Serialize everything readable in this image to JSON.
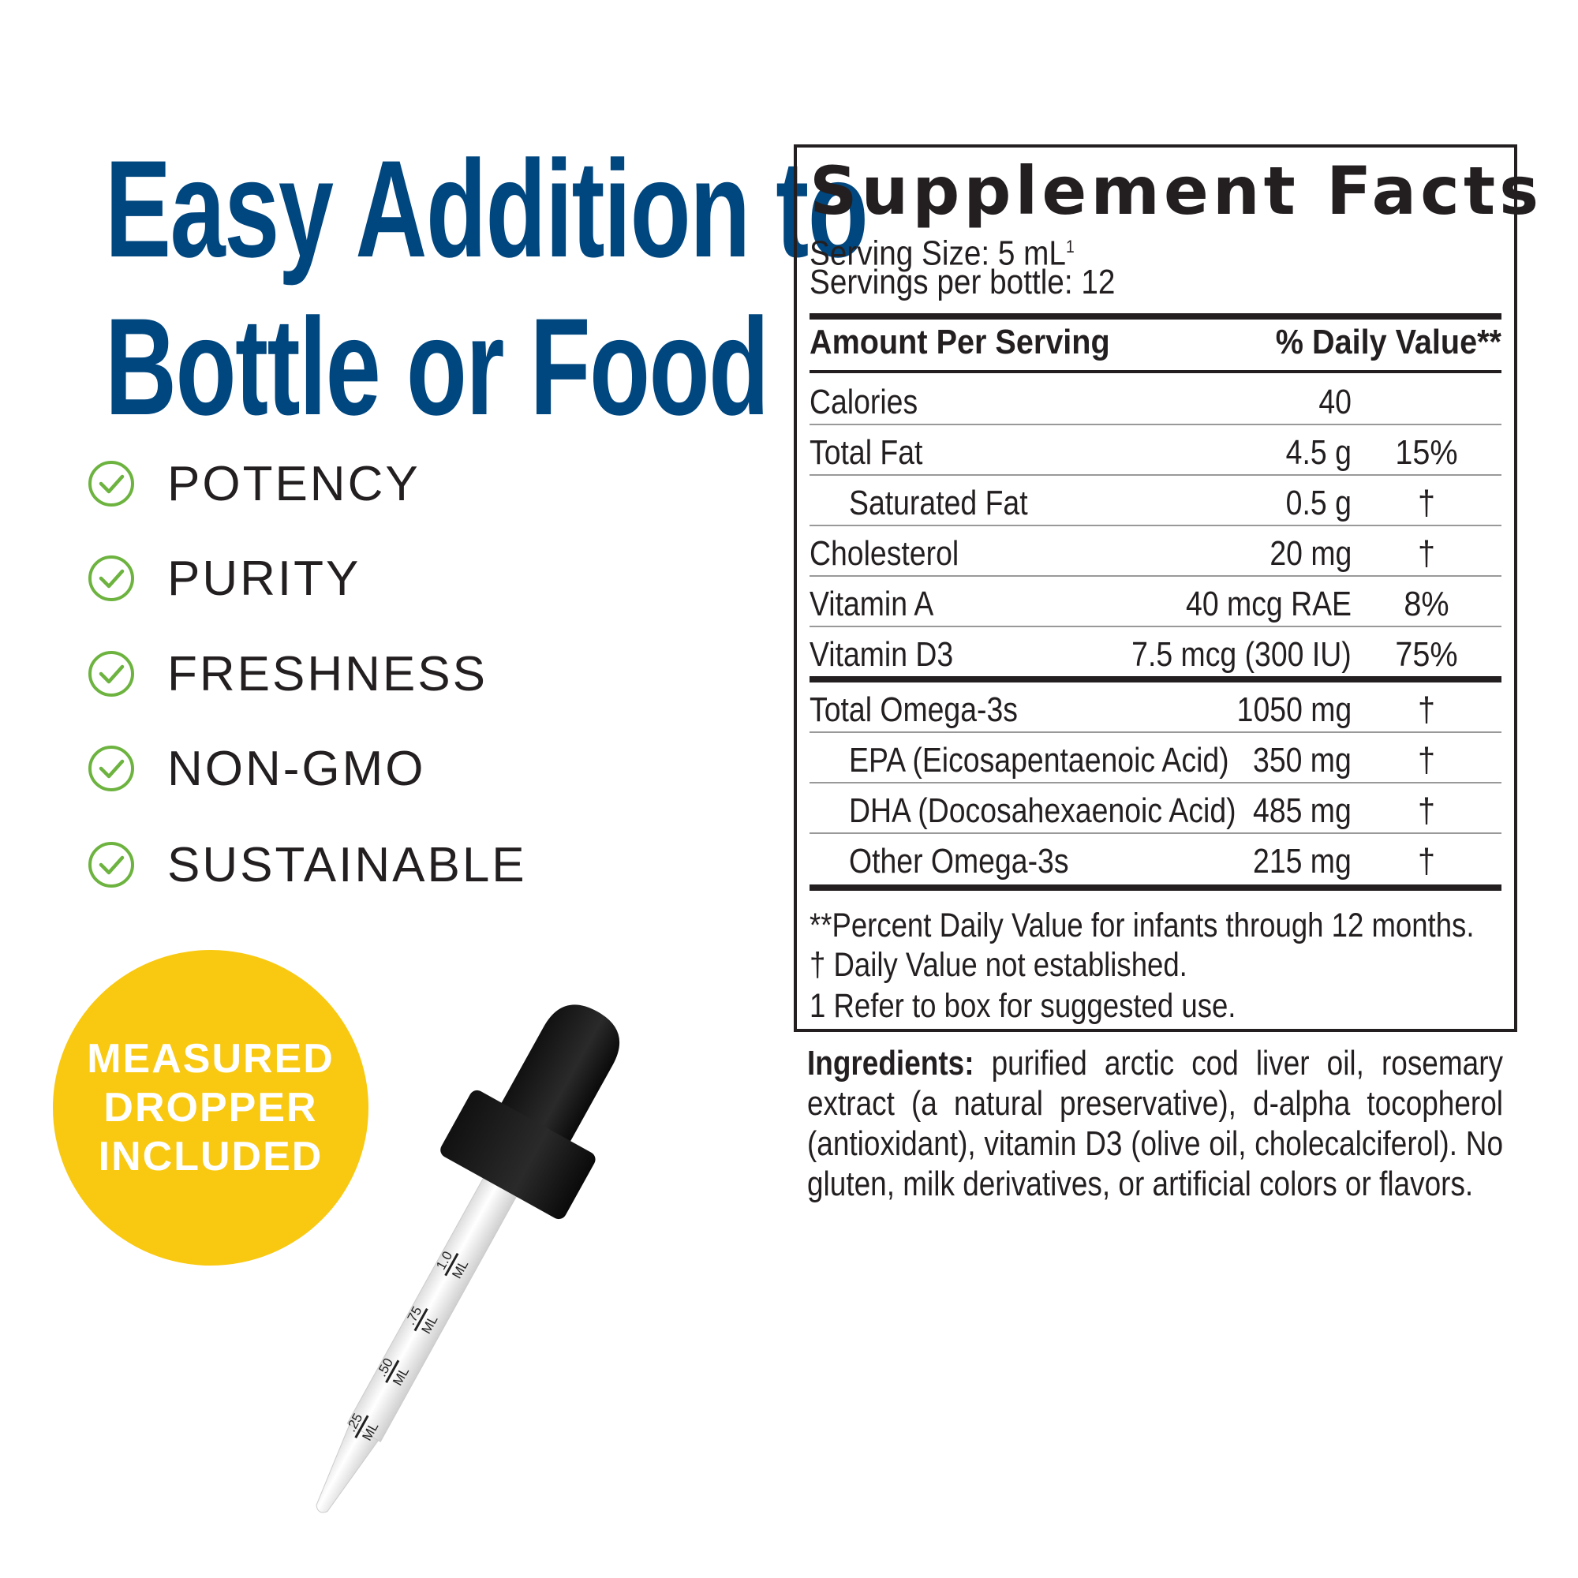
{
  "headline": {
    "line1": "Easy Addition to",
    "line2": "Bottle or Food",
    "color": "#00467f"
  },
  "benefits": [
    {
      "label": "POTENCY",
      "icon": "check-circle-icon"
    },
    {
      "label": "PURITY",
      "icon": "check-circle-icon"
    },
    {
      "label": "FRESHNESS",
      "icon": "check-circle-icon"
    },
    {
      "label": "NON-GMO",
      "icon": "check-circle-icon"
    },
    {
      "label": "SUSTAINABLE",
      "icon": "check-circle-icon"
    }
  ],
  "check_color": "#6db33f",
  "badge": {
    "lines": [
      "MEASURED",
      "DROPPER",
      "INCLUDED"
    ],
    "color": "#f9c810"
  },
  "dropper": {
    "marks": [
      {
        "value": "1.0",
        "unit": "ML"
      },
      {
        "value": ".75",
        "unit": "ML"
      },
      {
        "value": ".50",
        "unit": "ML"
      },
      {
        "value": ".25",
        "unit": "ML"
      }
    ]
  },
  "facts": {
    "title": "Supplement Facts",
    "serving_size": "Serving Size: 5 mL",
    "serving_size_sup": "1",
    "servings": "Servings per bottle: 12",
    "header_left": "Amount Per Serving",
    "header_right": "% Daily Value**",
    "rows": [
      {
        "label": "Calories",
        "amount": "40",
        "dv": ""
      },
      {
        "label": "Total Fat",
        "amount": "4.5 g",
        "dv": "15%"
      },
      {
        "label": "Saturated Fat",
        "amount": "0.5 g",
        "dv": "†"
      },
      {
        "label": "Cholesterol",
        "amount": "20 mg",
        "dv": "†"
      },
      {
        "label": "Vitamin A",
        "amount": "40 mcg RAE",
        "dv": "8%"
      },
      {
        "label": "Vitamin D3",
        "amount": "7.5 mcg (300 IU)",
        "dv": "75%"
      }
    ],
    "omega_rows": [
      {
        "label": "Total Omega-3s",
        "amount": "1050 mg",
        "dv": "†"
      },
      {
        "label": "EPA (Eicosapentaenoic Acid)",
        "amount": "350 mg",
        "dv": "†"
      },
      {
        "label": "DHA (Docosahexaenoic Acid)",
        "amount": "485 mg",
        "dv": "†"
      },
      {
        "label": "Other Omega-3s",
        "amount": "215 mg",
        "dv": "†"
      }
    ],
    "notes": [
      "**Percent Daily Value for infants through 12 months.",
      "†  Daily Value not established.",
      "1 Refer to box for suggested use."
    ]
  },
  "ingredients": {
    "label": "Ingredients:",
    "text": " purified arctic cod liver oil, rosemary extract (a natural preservative), d-alpha tocopherol (antioxidant), vitamin D3 (olive oil, cholecalciferol). No gluten, milk derivatives, or artificial colors or flavors."
  }
}
